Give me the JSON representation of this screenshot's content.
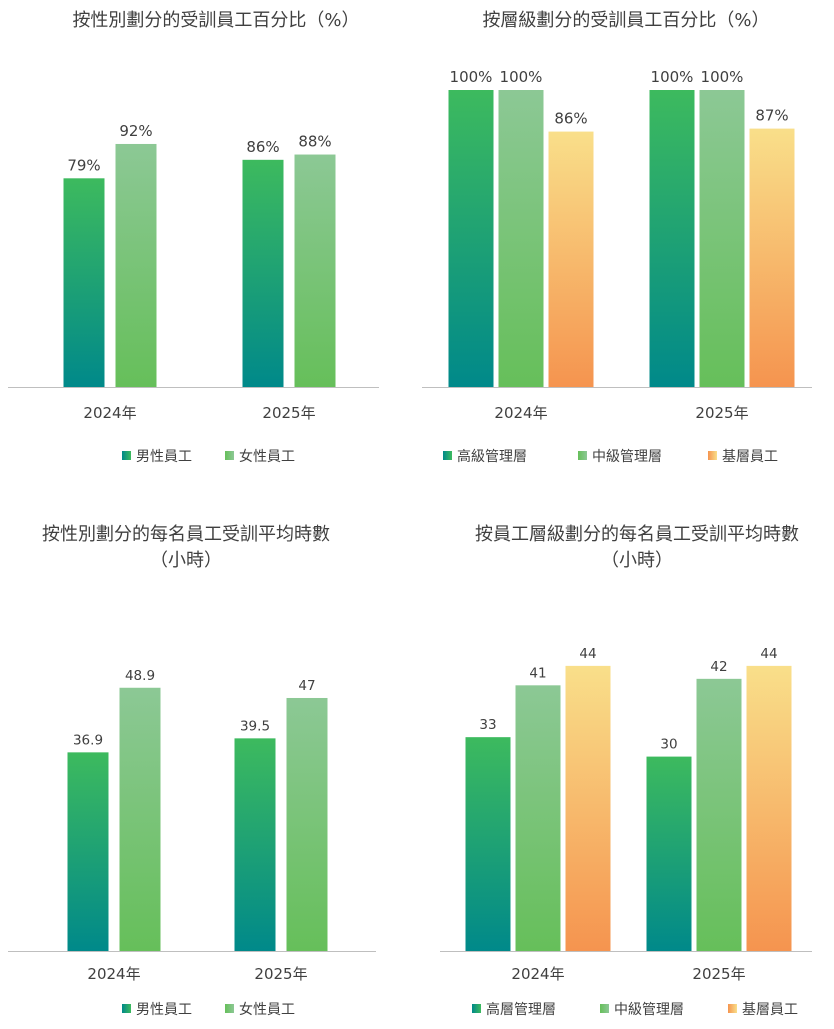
{
  "chart_data": [
    {
      "type": "bar",
      "title": "按性別劃分的受訓員工百分比（%）",
      "categories": [
        "2024年",
        "2025年"
      ],
      "series": [
        {
          "name": "男性員工",
          "values": [
            79,
            86
          ],
          "labels": [
            "79%",
            "86%"
          ],
          "gradient": [
            "#3dba5e",
            "#00898a"
          ]
        },
        {
          "name": "女性員工",
          "values": [
            92,
            88
          ],
          "labels": [
            "92%",
            "88%"
          ],
          "gradient": [
            "#8cc895",
            "#66bf5a"
          ]
        }
      ],
      "ylim": [
        0,
        120
      ],
      "legend": "bottom"
    },
    {
      "type": "bar",
      "title": "按層級劃分的受訓員工百分比（%）",
      "categories": [
        "2024年",
        "2025年"
      ],
      "series": [
        {
          "name": "高級管理層",
          "values": [
            100,
            100
          ],
          "labels": [
            "100%",
            "100%"
          ],
          "gradient": [
            "#3dba5e",
            "#00898a"
          ]
        },
        {
          "name": "中級管理層",
          "values": [
            100,
            100
          ],
          "labels": [
            "100%",
            "100%"
          ],
          "gradient": [
            "#8cc895",
            "#66bf5a"
          ]
        },
        {
          "name": "基層員工",
          "values": [
            86,
            87
          ],
          "labels": [
            "86%",
            "87%"
          ],
          "gradient": [
            "#f9df8a",
            "#f5944f"
          ]
        }
      ],
      "ylim": [
        0,
        100
      ],
      "legend": "bottom"
    },
    {
      "type": "bar",
      "title": "按性別劃分的每名員工受訓平均時數（小時）",
      "categories": [
        "2024年",
        "2025年"
      ],
      "series": [
        {
          "name": "男性員工",
          "values": [
            36.9,
            39.5
          ],
          "labels": [
            "36.9",
            "39.5"
          ],
          "gradient": [
            "#3dba5e",
            "#00898a"
          ]
        },
        {
          "name": "女性員工",
          "values": [
            48.9,
            47
          ],
          "labels": [
            "48.9",
            "47"
          ],
          "gradient": [
            "#8cc895",
            "#66bf5a"
          ]
        }
      ],
      "ylim": [
        0,
        60
      ],
      "legend": "bottom"
    },
    {
      "type": "bar",
      "title": "按員工層級劃分的每名員工受訓平均時數（小時）",
      "categories": [
        "2024年",
        "2025年"
      ],
      "series": [
        {
          "name": "高層管理層",
          "values": [
            33,
            30
          ],
          "labels": [
            "33",
            "30"
          ],
          "gradient": [
            "#3dba5e",
            "#00898a"
          ]
        },
        {
          "name": "中級管理層",
          "values": [
            41,
            42
          ],
          "labels": [
            "41",
            "42"
          ],
          "gradient": [
            "#8cc895",
            "#66bf5a"
          ]
        },
        {
          "name": "基層員工",
          "values": [
            44,
            44
          ],
          "labels": [
            "44",
            "44"
          ],
          "gradient": [
            "#f9df8a",
            "#f5944f"
          ]
        }
      ],
      "ylim": [
        0,
        50
      ],
      "legend": "bottom"
    }
  ],
  "title_lines": [
    [
      "按性別劃分的受訓員工百分比（%）"
    ],
    [
      "按層級劃分的受訓員工百分比（%）"
    ],
    [
      "按性別劃分的每名員工受訓平均時數",
      "（小時）"
    ],
    [
      "按員工層級劃分的每名員工受訓平均時數",
      "（小時）"
    ]
  ],
  "colors": {
    "text": "#404040",
    "axis": "#bfbfbf"
  }
}
